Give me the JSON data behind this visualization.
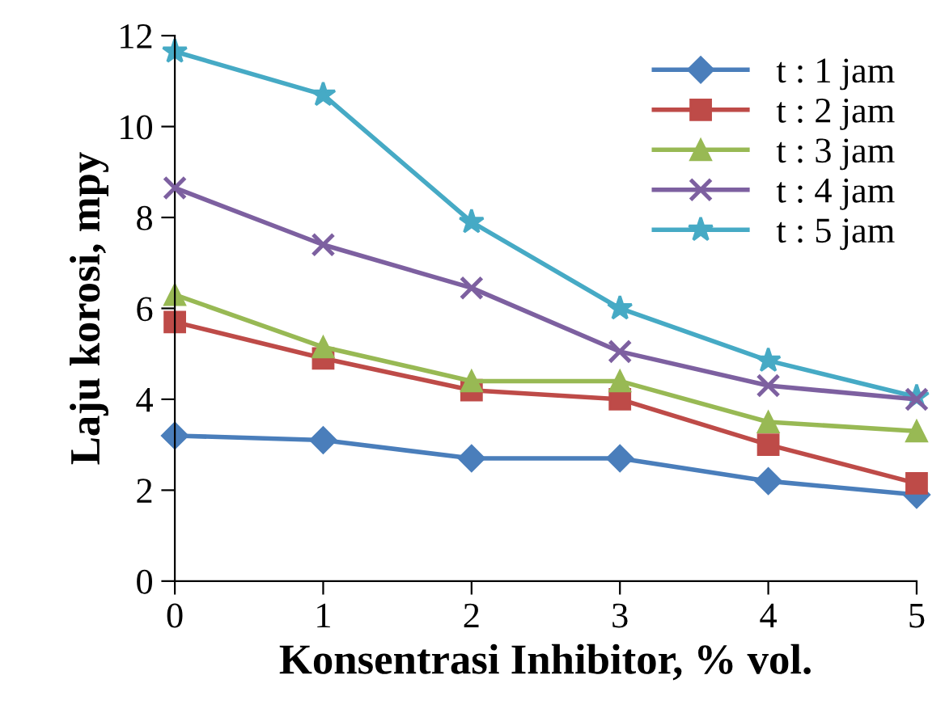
{
  "chart_data": {
    "type": "line",
    "xlabel": "Konsentrasi Inhibitor, % vol.",
    "ylabel": "Laju korosi, mpy",
    "x": [
      0,
      1,
      2,
      3,
      4,
      5
    ],
    "xlim": [
      0,
      5
    ],
    "xticks": [
      0,
      1,
      2,
      3,
      4,
      5
    ],
    "ylim": [
      0,
      12
    ],
    "yticks": [
      0,
      2,
      4,
      6,
      8,
      10,
      12
    ],
    "grid": false,
    "legend": "top right",
    "line_style": "solid",
    "series": [
      {
        "name": "t : 1 jam",
        "color": "#4a7ebb",
        "marker": "diamond",
        "values": [
          3.2,
          3.1,
          2.7,
          2.7,
          2.2,
          1.9
        ]
      },
      {
        "name": "t : 2 jam",
        "color": "#be4b48",
        "marker": "square",
        "values": [
          5.7,
          4.9,
          4.2,
          4.0,
          3.0,
          2.15
        ]
      },
      {
        "name": "t : 3 jam",
        "color": "#98b954",
        "marker": "triangle",
        "values": [
          6.3,
          5.15,
          4.4,
          4.4,
          3.5,
          3.3
        ]
      },
      {
        "name": "t : 4 jam",
        "color": "#7d60a0",
        "marker": "cross",
        "values": [
          8.65,
          7.4,
          6.45,
          5.05,
          4.3,
          4.0
        ]
      },
      {
        "name": "t : 5 jam",
        "color": "#46aac5",
        "marker": "star",
        "values": [
          11.65,
          10.7,
          7.9,
          6.0,
          4.85,
          4.05
        ]
      }
    ]
  }
}
